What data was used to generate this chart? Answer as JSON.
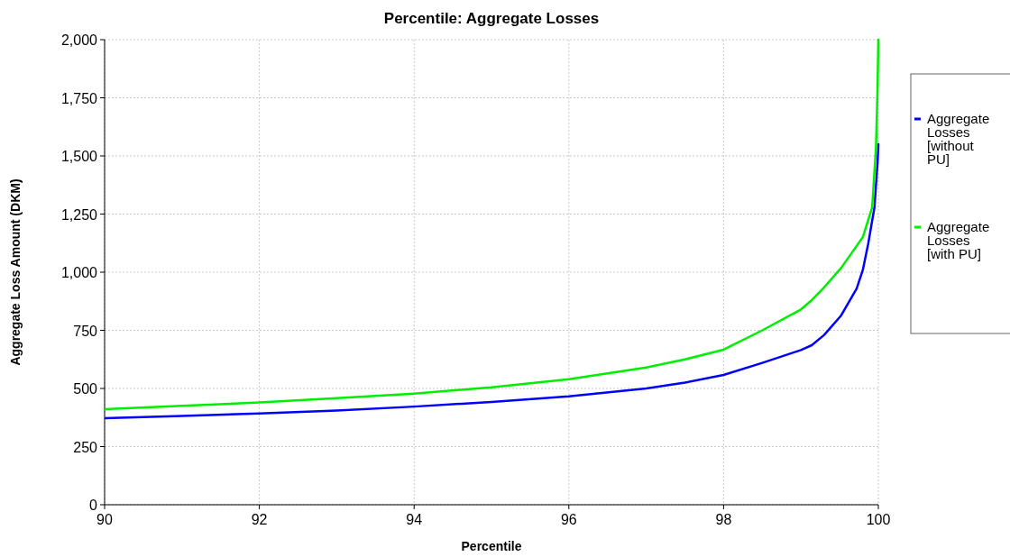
{
  "chart_data": {
    "type": "line",
    "title": "Percentile: Aggregate Losses",
    "xlabel": "Percentile",
    "ylabel": "Aggregate Loss Amount (DKM)",
    "xlim": [
      90,
      100
    ],
    "xticks": [
      90,
      92,
      94,
      96,
      98,
      100
    ],
    "ylim": [
      0,
      2000
    ],
    "yticks": [
      0,
      {
        "value": 250,
        "label": "250"
      },
      {
        "value": 500,
        "label": "500"
      },
      {
        "value": 750,
        "label": "750"
      },
      {
        "value": 1000,
        "label": "1,000"
      },
      {
        "value": 1250,
        "label": "1,250"
      },
      {
        "value": 1500,
        "label": "1,500"
      },
      {
        "value": 1750,
        "label": "1,750"
      },
      {
        "value": 2000,
        "label": "2,000"
      }
    ],
    "grid": true,
    "legend": "right",
    "marker": "none",
    "line_style": "solid",
    "series": [
      {
        "name": "Aggregate Losses [without PU]",
        "color": "#0000ff",
        "x": [
          90,
          91,
          92,
          93,
          94,
          95,
          96,
          97,
          97.5,
          98,
          98.5,
          99,
          99.14,
          99.3,
          99.52,
          99.72,
          99.8,
          99.87,
          99.95,
          99.99,
          100
        ],
        "values": [
          372,
          382,
          392,
          405,
          422,
          442,
          466,
          500,
          525,
          558,
          610,
          665,
          686,
          730,
          814,
          930,
          1010,
          1124,
          1279,
          1473,
          1550
        ]
      },
      {
        "name": "Aggregate Losses [with PU]",
        "color": "#00ee00",
        "x": [
          90,
          91,
          92,
          93,
          94,
          95,
          96,
          97,
          97.5,
          98,
          98.5,
          99,
          99.14,
          99.3,
          99.52,
          99.65,
          99.8,
          99.92,
          99.97,
          99.99,
          100
        ],
        "values": [
          411,
          425,
          440,
          458,
          478,
          505,
          540,
          590,
          625,
          667,
          750,
          840,
          880,
          935,
          1019,
          1080,
          1151,
          1279,
          1539,
          1795,
          2000
        ]
      }
    ]
  }
}
